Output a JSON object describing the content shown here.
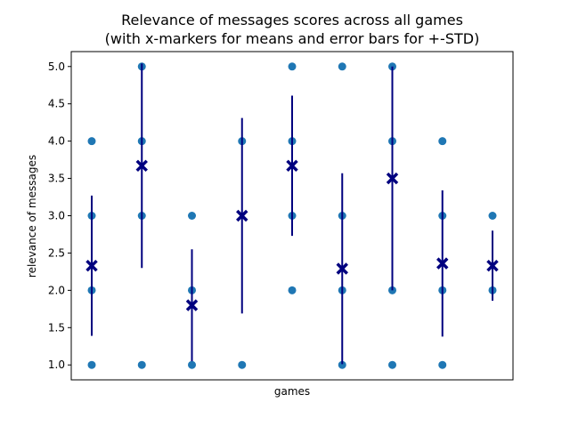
{
  "chart_data": {
    "type": "scatter",
    "title": "Relevance of messages scores across all games",
    "subtitle": "(with x-markers for means and error bars for +-STD)",
    "xlabel": "games",
    "ylabel": "relevance of messages",
    "ylim": [
      0.8,
      5.2
    ],
    "y_ticks": [
      "1.0",
      "1.5",
      "2.0",
      "2.5",
      "3.0",
      "3.5",
      "4.0",
      "4.5",
      "5.0"
    ],
    "grid": false,
    "games": [
      {
        "scores": [
          1,
          2,
          3,
          4
        ],
        "mean": 2.33,
        "std": 0.94
      },
      {
        "scores": [
          1,
          3,
          4,
          5
        ],
        "mean": 3.67,
        "std": 1.37
      },
      {
        "scores": [
          1,
          2,
          3
        ],
        "mean": 1.8,
        "std": 0.75
      },
      {
        "scores": [
          1,
          4
        ],
        "mean": 3.0,
        "std": 1.31
      },
      {
        "scores": [
          2,
          3,
          4,
          5
        ],
        "mean": 3.67,
        "std": 0.94
      },
      {
        "scores": [
          1,
          2,
          3,
          5
        ],
        "mean": 2.29,
        "std": 1.28
      },
      {
        "scores": [
          1,
          2,
          4,
          5
        ],
        "mean": 3.5,
        "std": 1.5
      },
      {
        "scores": [
          1,
          2,
          3,
          4
        ],
        "mean": 2.36,
        "std": 0.98
      },
      {
        "scores": [
          2,
          3
        ],
        "mean": 2.33,
        "std": 0.47
      }
    ],
    "colors": {
      "points": "#1f77b4",
      "mean_marker": "#00007f",
      "error_bar": "#00007f"
    }
  }
}
